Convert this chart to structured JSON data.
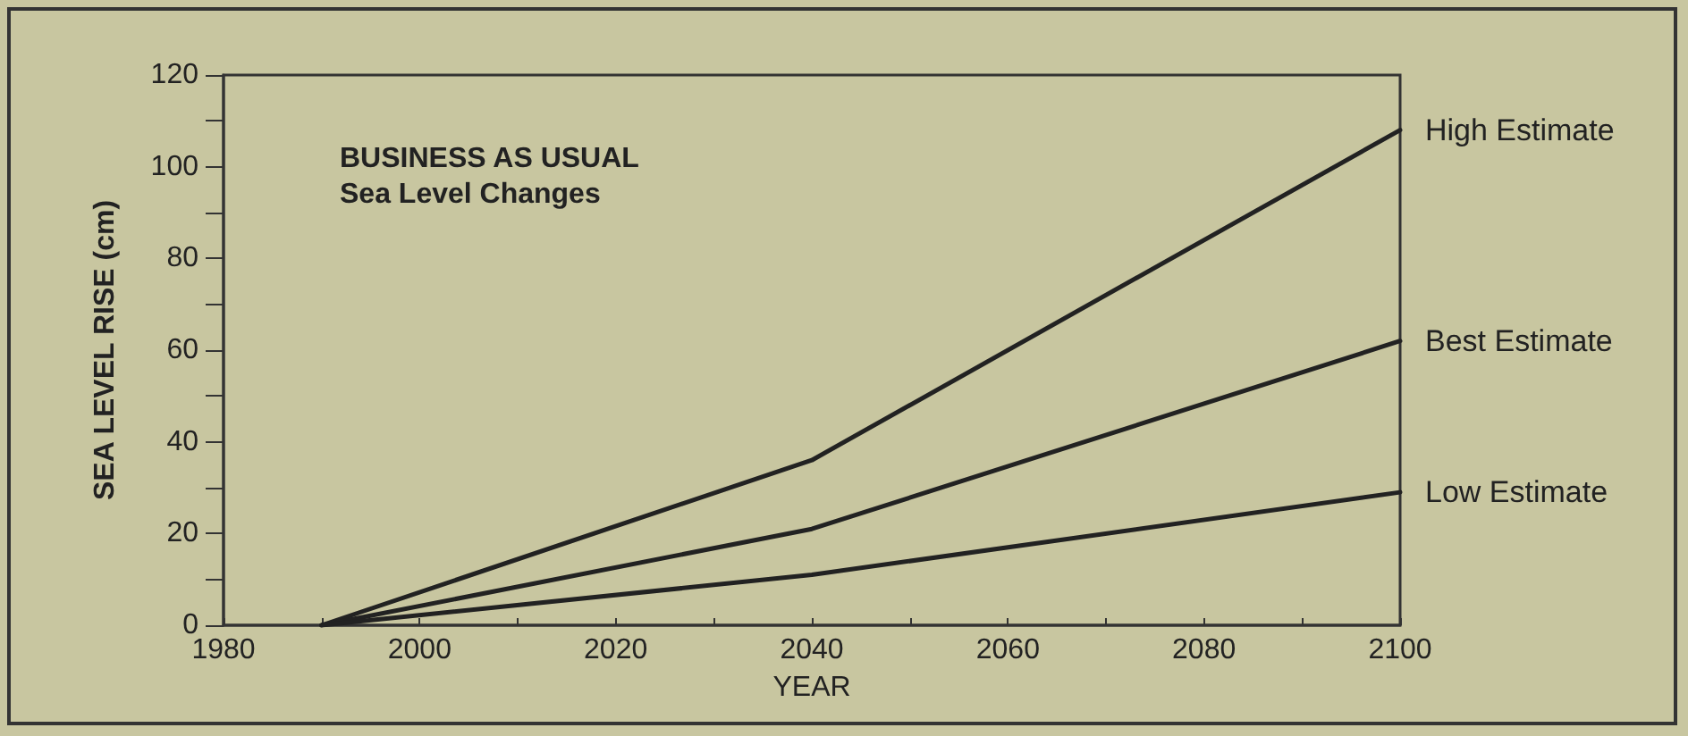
{
  "chart_data": {
    "type": "line",
    "title": "BUSINESS AS USUAL",
    "subtitle": "Sea Level Changes",
    "xlabel": "YEAR",
    "ylabel": "SEA LEVEL RISE (cm)",
    "xlim": [
      1980,
      2100
    ],
    "xticks": [
      1980,
      {
        "value": 1990,
        "label": null
      },
      2000,
      {
        "value": 2010,
        "label": null
      },
      2020,
      {
        "value": 2030,
        "label": null
      },
      2040,
      {
        "value": 2050,
        "label": null
      },
      2060,
      {
        "value": 2070,
        "label": null
      },
      2080,
      {
        "value": 2090,
        "label": null
      },
      2100
    ],
    "ylim": [
      0,
      120
    ],
    "yticks": [
      0,
      {
        "value": 10,
        "label": null
      },
      20,
      {
        "value": 30,
        "label": null
      },
      40,
      {
        "value": 50,
        "label": null
      },
      60,
      {
        "value": 70,
        "label": null
      },
      80,
      {
        "value": 90,
        "label": null
      },
      100,
      {
        "value": 110,
        "label": null
      },
      120
    ],
    "x": [
      1990,
      2040,
      2100
    ],
    "series": [
      {
        "name": "High Estimate",
        "color": "#222222",
        "values": [
          0,
          36,
          108
        ]
      },
      {
        "name": "Best Estimate",
        "color": "#222222",
        "values": [
          0,
          21,
          62
        ]
      },
      {
        "name": "Low Estimate",
        "color": "#222222",
        "values": [
          0,
          11,
          29
        ]
      }
    ],
    "grid": false,
    "legend": false,
    "marker": "none",
    "line_style": "solid"
  }
}
